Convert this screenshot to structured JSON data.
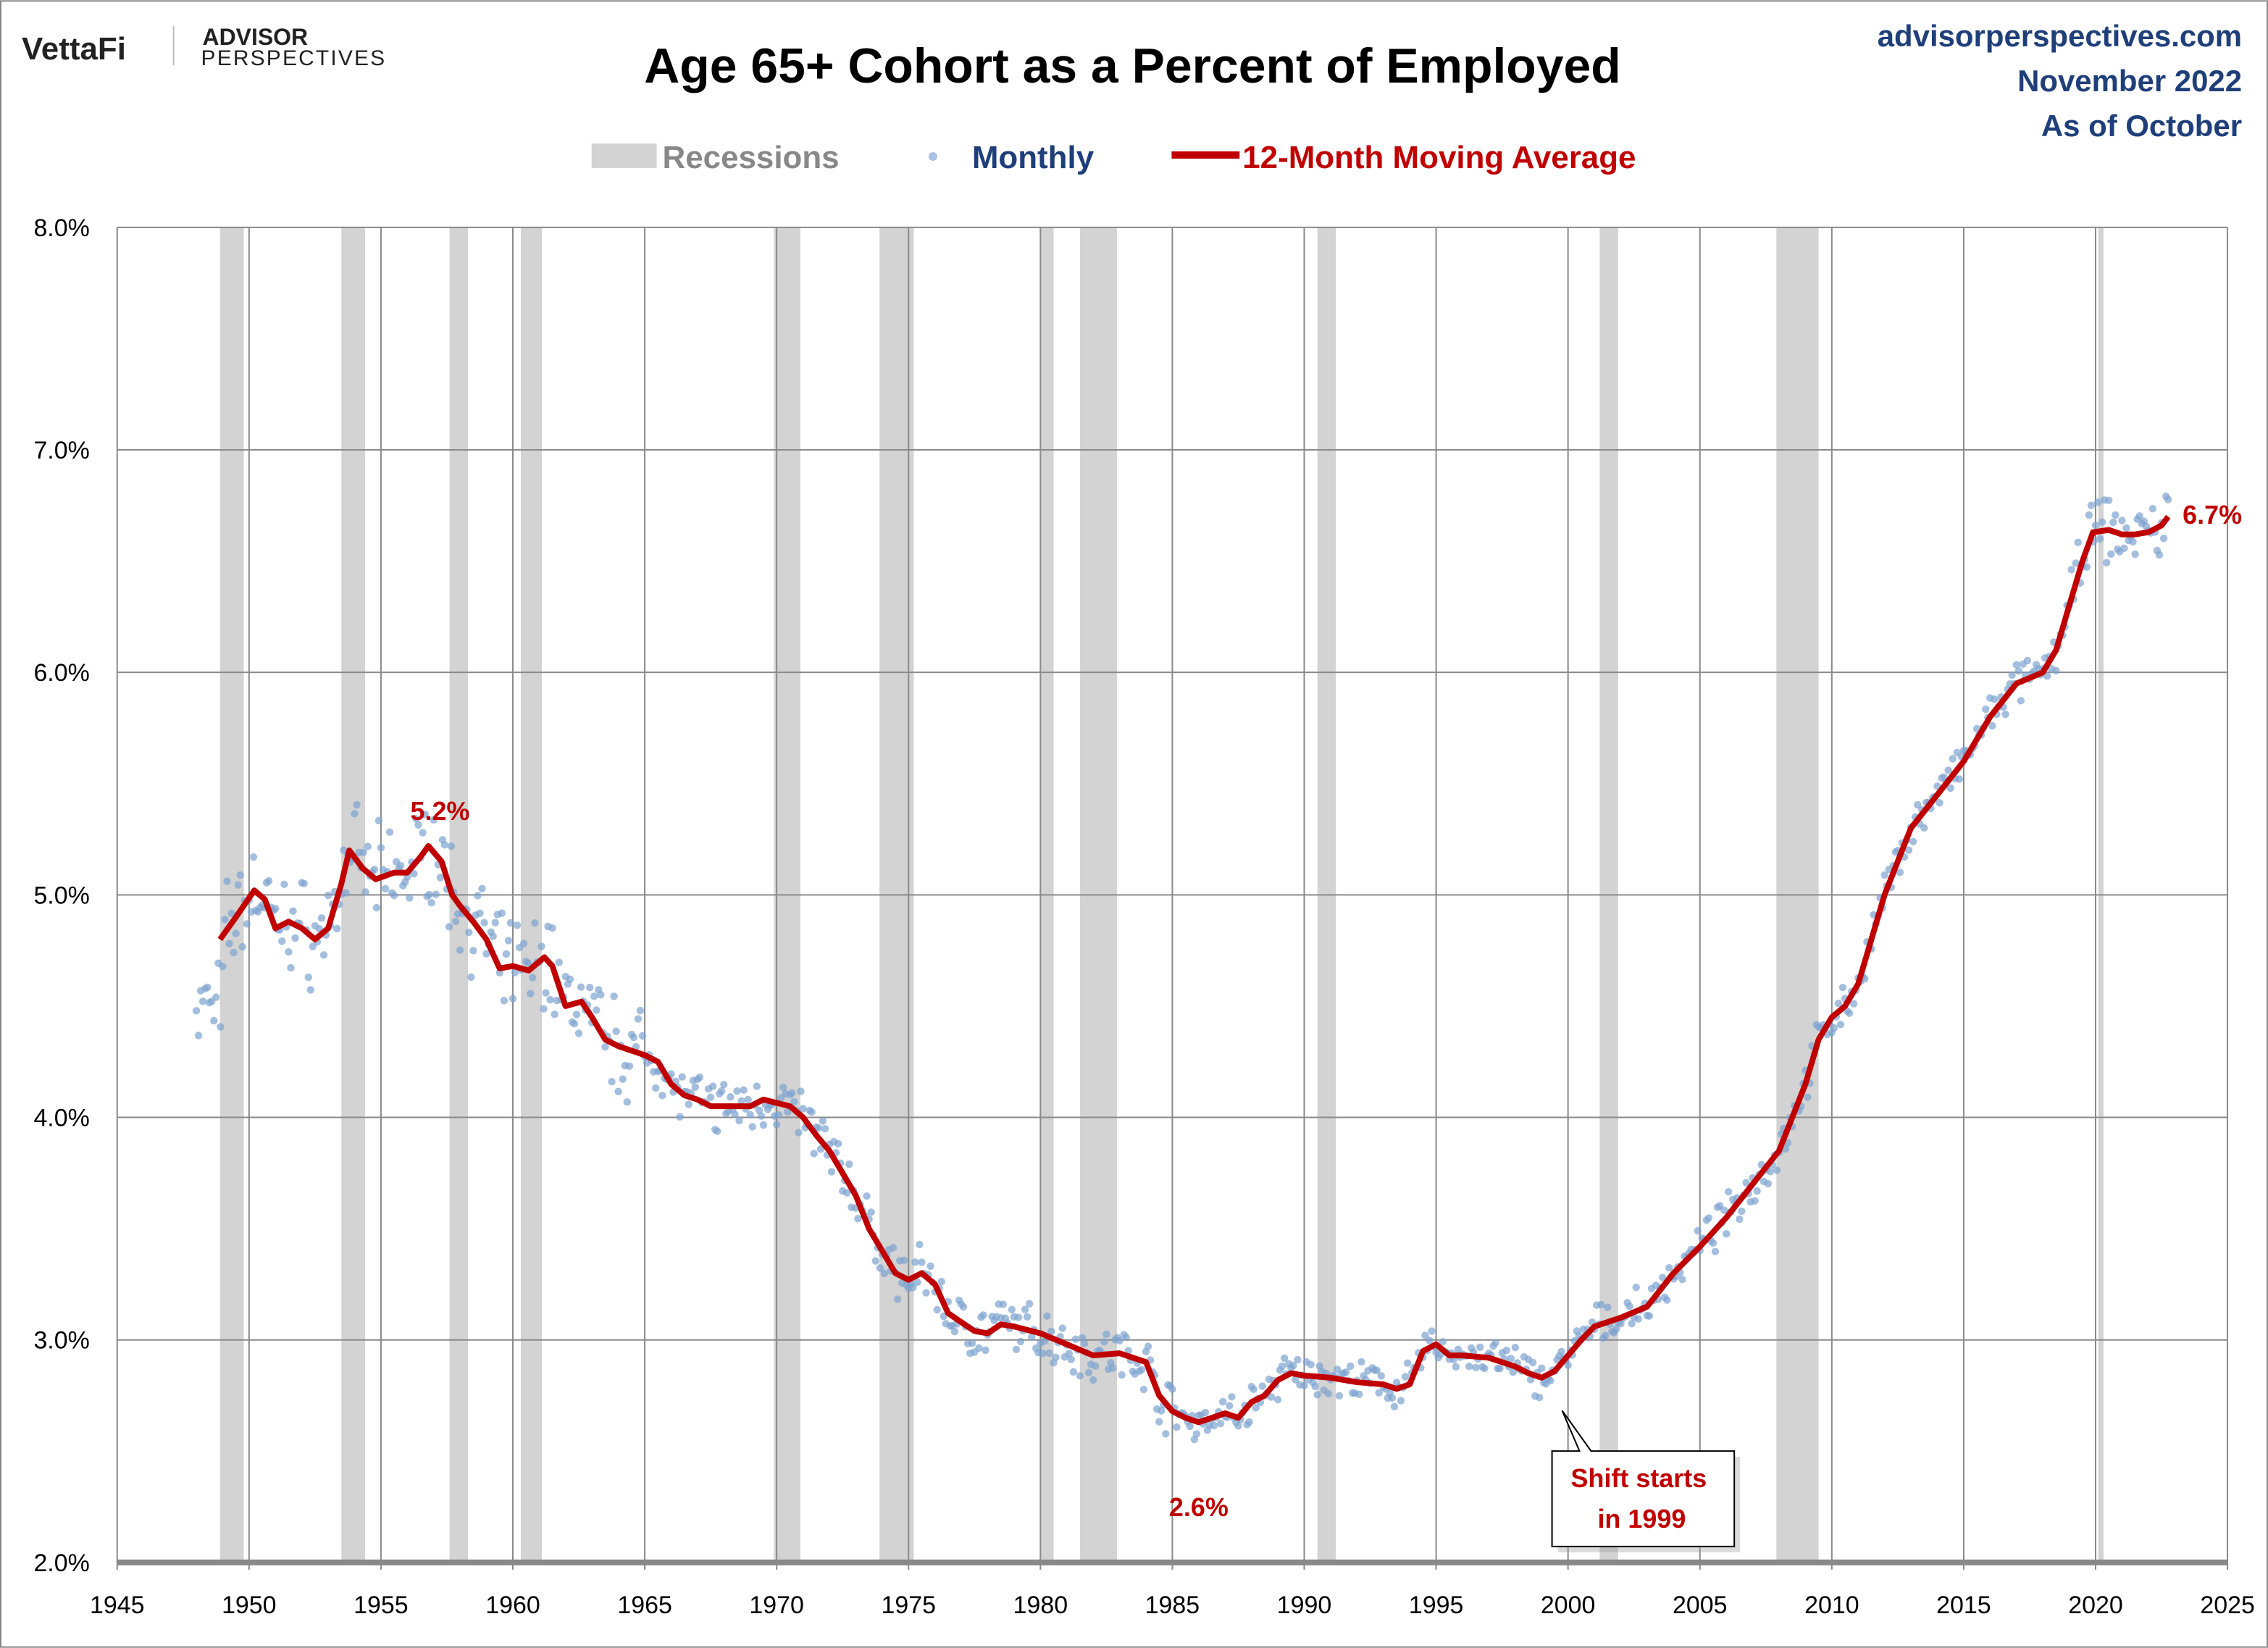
{
  "header": {
    "logo_brand": "VettaFi",
    "logo_sub_1": "ADVISOR",
    "logo_sub_2": "PERSPECTIVES",
    "site": "advisorperspectives.com",
    "date": "November 2022",
    "as_of": "As of October"
  },
  "colors": {
    "recession": "#D3D3D3",
    "monthly": "#7EA3D0",
    "average": "#C00000",
    "text_blue": "#1F3F7A"
  },
  "chart_data": {
    "type": "line",
    "title": "Age 65+ Cohort as a Percent of Employed",
    "legend": {
      "placement": "top-center",
      "recessions": "Recessions",
      "monthly": "Monthly",
      "average": "12-Month Moving Average"
    },
    "xlim": [
      1945,
      2025
    ],
    "ylim": [
      2.0,
      8.0
    ],
    "x_ticks": [
      "1945",
      "1950",
      "1955",
      "1960",
      "1965",
      "1970",
      "1975",
      "1980",
      "1985",
      "1990",
      "1995",
      "2000",
      "2005",
      "2010",
      "2015",
      "2020",
      "2025"
    ],
    "y_ticks": [
      "2.0%",
      "3.0%",
      "4.0%",
      "5.0%",
      "6.0%",
      "7.0%",
      "8.0%"
    ],
    "recessions": [
      [
        1948.9,
        1949.8
      ],
      [
        1953.5,
        1954.4
      ],
      [
        1957.6,
        1958.3
      ],
      [
        1960.3,
        1961.1
      ],
      [
        1969.9,
        1970.9
      ],
      [
        1973.9,
        1975.2
      ],
      [
        1980.0,
        1980.5
      ],
      [
        1981.5,
        1982.9
      ],
      [
        1990.5,
        1991.2
      ],
      [
        2001.2,
        2001.9
      ],
      [
        2007.9,
        2009.5
      ],
      [
        2020.1,
        2020.3
      ]
    ],
    "moving_average": [
      [
        1948.9,
        4.8
      ],
      [
        1949.5,
        4.9
      ],
      [
        1950.2,
        5.02
      ],
      [
        1950.6,
        4.98
      ],
      [
        1951.0,
        4.85
      ],
      [
        1951.5,
        4.88
      ],
      [
        1952.0,
        4.85
      ],
      [
        1952.5,
        4.8
      ],
      [
        1953.0,
        4.85
      ],
      [
        1953.5,
        5.05
      ],
      [
        1953.8,
        5.2
      ],
      [
        1954.3,
        5.12
      ],
      [
        1954.8,
        5.07
      ],
      [
        1955.5,
        5.1
      ],
      [
        1956.0,
        5.1
      ],
      [
        1956.5,
        5.17
      ],
      [
        1956.8,
        5.22
      ],
      [
        1957.3,
        5.15
      ],
      [
        1957.7,
        5.0
      ],
      [
        1958.0,
        4.95
      ],
      [
        1958.5,
        4.88
      ],
      [
        1959.0,
        4.8
      ],
      [
        1959.5,
        4.67
      ],
      [
        1960.0,
        4.68
      ],
      [
        1960.6,
        4.66
      ],
      [
        1961.2,
        4.72
      ],
      [
        1961.5,
        4.68
      ],
      [
        1962.0,
        4.5
      ],
      [
        1962.6,
        4.52
      ],
      [
        1963.0,
        4.45
      ],
      [
        1963.5,
        4.35
      ],
      [
        1964.0,
        4.32
      ],
      [
        1964.5,
        4.3
      ],
      [
        1965.0,
        4.28
      ],
      [
        1965.5,
        4.25
      ],
      [
        1966.0,
        4.15
      ],
      [
        1966.5,
        4.1
      ],
      [
        1967.0,
        4.08
      ],
      [
        1967.5,
        4.05
      ],
      [
        1968.0,
        4.05
      ],
      [
        1969.0,
        4.05
      ],
      [
        1969.5,
        4.08
      ],
      [
        1970.5,
        4.05
      ],
      [
        1971.0,
        4.0
      ],
      [
        1971.5,
        3.92
      ],
      [
        1972.0,
        3.85
      ],
      [
        1972.5,
        3.75
      ],
      [
        1973.0,
        3.65
      ],
      [
        1973.5,
        3.5
      ],
      [
        1974.0,
        3.4
      ],
      [
        1974.5,
        3.3
      ],
      [
        1975.0,
        3.27
      ],
      [
        1975.5,
        3.3
      ],
      [
        1976.0,
        3.25
      ],
      [
        1976.5,
        3.12
      ],
      [
        1977.0,
        3.08
      ],
      [
        1977.5,
        3.04
      ],
      [
        1978.0,
        3.03
      ],
      [
        1978.5,
        3.07
      ],
      [
        1979.0,
        3.06
      ],
      [
        1980.0,
        3.03
      ],
      [
        1981.0,
        2.98
      ],
      [
        1982.0,
        2.93
      ],
      [
        1983.0,
        2.94
      ],
      [
        1984.0,
        2.9
      ],
      [
        1984.5,
        2.75
      ],
      [
        1985.0,
        2.68
      ],
      [
        1985.5,
        2.65
      ],
      [
        1986.0,
        2.63
      ],
      [
        1986.5,
        2.65
      ],
      [
        1987.0,
        2.67
      ],
      [
        1987.5,
        2.65
      ],
      [
        1988.0,
        2.72
      ],
      [
        1988.5,
        2.75
      ],
      [
        1989.0,
        2.82
      ],
      [
        1989.5,
        2.85
      ],
      [
        1990.0,
        2.84
      ],
      [
        1991.0,
        2.83
      ],
      [
        1992.0,
        2.81
      ],
      [
        1993.0,
        2.8
      ],
      [
        1993.5,
        2.78
      ],
      [
        1994.0,
        2.8
      ],
      [
        1994.5,
        2.95
      ],
      [
        1995.0,
        2.98
      ],
      [
        1995.5,
        2.93
      ],
      [
        1996.0,
        2.93
      ],
      [
        1997.0,
        2.92
      ],
      [
        1998.0,
        2.88
      ],
      [
        1998.5,
        2.85
      ],
      [
        1999.0,
        2.83
      ],
      [
        1999.5,
        2.86
      ],
      [
        2000.0,
        2.93
      ],
      [
        2000.5,
        3.0
      ],
      [
        2001.0,
        3.06
      ],
      [
        2002.0,
        3.1
      ],
      [
        2003.0,
        3.15
      ],
      [
        2004.0,
        3.3
      ],
      [
        2005.0,
        3.42
      ],
      [
        2006.0,
        3.55
      ],
      [
        2007.0,
        3.7
      ],
      [
        2008.0,
        3.85
      ],
      [
        2009.0,
        4.15
      ],
      [
        2009.5,
        4.35
      ],
      [
        2010.0,
        4.45
      ],
      [
        2010.5,
        4.5
      ],
      [
        2011.0,
        4.6
      ],
      [
        2011.5,
        4.8
      ],
      [
        2012.0,
        5.0
      ],
      [
        2013.0,
        5.3
      ],
      [
        2014.0,
        5.45
      ],
      [
        2015.0,
        5.6
      ],
      [
        2016.0,
        5.8
      ],
      [
        2017.0,
        5.95
      ],
      [
        2018.0,
        6.0
      ],
      [
        2018.5,
        6.1
      ],
      [
        2019.0,
        6.3
      ],
      [
        2019.5,
        6.5
      ],
      [
        2019.9,
        6.63
      ],
      [
        2020.5,
        6.64
      ],
      [
        2021.0,
        6.62
      ],
      [
        2021.5,
        6.62
      ],
      [
        2022.0,
        6.63
      ],
      [
        2022.5,
        6.66
      ],
      [
        2022.75,
        6.7
      ]
    ],
    "monthly_range": [
      1948.0,
      2022.75
    ],
    "annotations": {
      "peak_label": {
        "text": "5.2%",
        "x": 1956.8,
        "y": 5.22
      },
      "low_label": {
        "text": "2.6%",
        "x": 1986.0,
        "y": 2.63
      },
      "last_label": {
        "text": "6.7%",
        "x": 2022.75,
        "y": 6.7
      },
      "callout_line1": "Shift starts",
      "callout_line2": "in 1999"
    }
  }
}
